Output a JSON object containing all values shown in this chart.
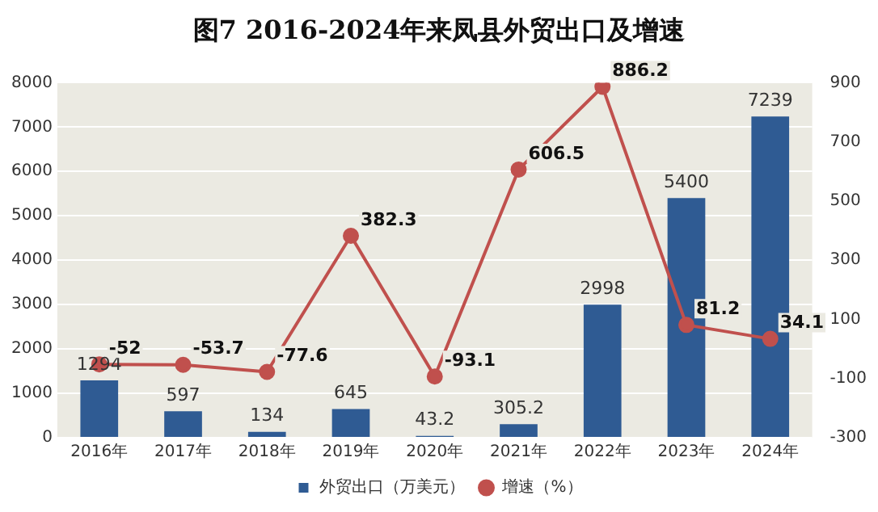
{
  "chart_data": {
    "type": "bar",
    "title": "图7 2016-2024年来凤县外贸出口及增速",
    "categories": [
      "2016年",
      "2017年",
      "2018年",
      "2019年",
      "2020年",
      "2021年",
      "2022年",
      "2023年",
      "2024年"
    ],
    "series": [
      {
        "name": "外贸出口（万美元）",
        "color": "#2f5b93",
        "values": [
          1294,
          597,
          134,
          645,
          43.2,
          305.2,
          2998,
          5400,
          7239
        ]
      },
      {
        "name": "增速（%）",
        "type": "line",
        "axis": "y2",
        "color": "#c0504d",
        "marker": "circle",
        "values": [
          -52,
          -53.7,
          -77.6,
          382.3,
          -93.1,
          606.5,
          886.2,
          81.2,
          34.1
        ]
      }
    ],
    "ylim": [
      0,
      8000
    ],
    "yticks": [
      0,
      1000,
      2000,
      3000,
      4000,
      5000,
      6000,
      7000,
      8000
    ],
    "y2lim": [
      -300,
      900
    ],
    "y2ticks": [
      -300,
      -100,
      100,
      300,
      500,
      700,
      900
    ],
    "grid": "y",
    "legend": "bottom",
    "data_labels": true
  }
}
